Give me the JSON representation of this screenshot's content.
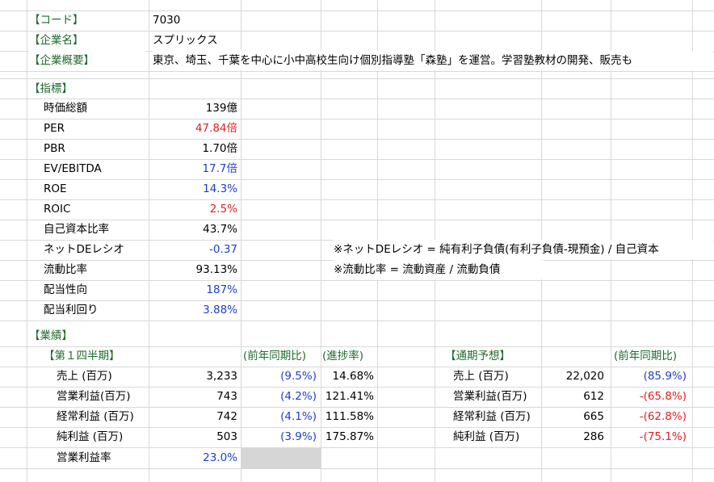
{
  "colors": {
    "green": "#1f6b2c",
    "red": "#e02020",
    "blue": "#1f3fc8",
    "gridline": "#d9d9d9",
    "shaded": "#d6d6d6"
  },
  "company": {
    "code_label": "【コード】",
    "code": "7030",
    "name_label": "【企業名】",
    "name": "スプリックス",
    "overview_label": "【企業概要】",
    "overview": "東京、埼玉、千葉を中心に小中高校生向け個別指導塾「森塾」を運営。学習塾教材の開発、販売も"
  },
  "indicators": {
    "header": "【指標】",
    "rows": [
      {
        "label": "時価総額",
        "value": "139億",
        "color": "black"
      },
      {
        "label": "PER",
        "value": "47.84倍",
        "color": "red"
      },
      {
        "label": "PBR",
        "value": "1.70倍",
        "color": "black"
      },
      {
        "label": "EV/EBITDA",
        "value": "17.7倍",
        "color": "blue"
      },
      {
        "label": "ROE",
        "value": "14.3%",
        "color": "blue"
      },
      {
        "label": "ROIC",
        "value": "2.5%",
        "color": "red"
      },
      {
        "label": "自己資本比率",
        "value": "43.7%",
        "color": "black"
      },
      {
        "label": "ネットDEレシオ",
        "value": "-0.37",
        "color": "blue"
      },
      {
        "label": "流動比率",
        "value": "93.13%",
        "color": "black"
      },
      {
        "label": "配当性向",
        "value": "187%",
        "color": "blue"
      },
      {
        "label": "配当利回り",
        "value": "3.88%",
        "color": "blue"
      }
    ],
    "notes": {
      "net_de": "※ネットDEレシオ = 純有利子負債(有利子負債-現預金) / 自己資本",
      "current_ratio": "※流動比率 = 流動資産 / 流動負債"
    }
  },
  "results": {
    "header": "【業績】",
    "q1": {
      "header": "【第１四半期】",
      "yoy_header": "(前年同期比)",
      "progress_header": "(進捗率)",
      "rows": [
        {
          "label": "売上 (百万)",
          "value": "3,233",
          "yoy": "(9.5%)",
          "progress": "14.68%",
          "yoy_color": "blue"
        },
        {
          "label": "営業利益(百万)",
          "value": "743",
          "yoy": "(4.2%)",
          "progress": "121.41%",
          "yoy_color": "blue"
        },
        {
          "label": "経常利益 (百万)",
          "value": "742",
          "yoy": "(4.1%)",
          "progress": "111.58%",
          "yoy_color": "blue"
        },
        {
          "label": "純利益 (百万)",
          "value": "503",
          "yoy": "(3.9%)",
          "progress": "175.87%",
          "yoy_color": "blue"
        }
      ],
      "margin_label": "営業利益率",
      "margin_value": "23.0%"
    },
    "forecast": {
      "header": "【通期予想】",
      "yoy_header": "(前年同期比)",
      "rows": [
        {
          "label": "売上 (百万)",
          "value": "22,020",
          "yoy": "(85.9%)",
          "yoy_color": "blue"
        },
        {
          "label": "営業利益(百万)",
          "value": "612",
          "yoy": "-(65.8%)",
          "yoy_color": "red"
        },
        {
          "label": "経常利益 (百万)",
          "value": "665",
          "yoy": "-(62.8%)",
          "yoy_color": "red"
        },
        {
          "label": "純利益 (百万)",
          "value": "286",
          "yoy": "-(75.1%)",
          "yoy_color": "red"
        }
      ]
    }
  }
}
